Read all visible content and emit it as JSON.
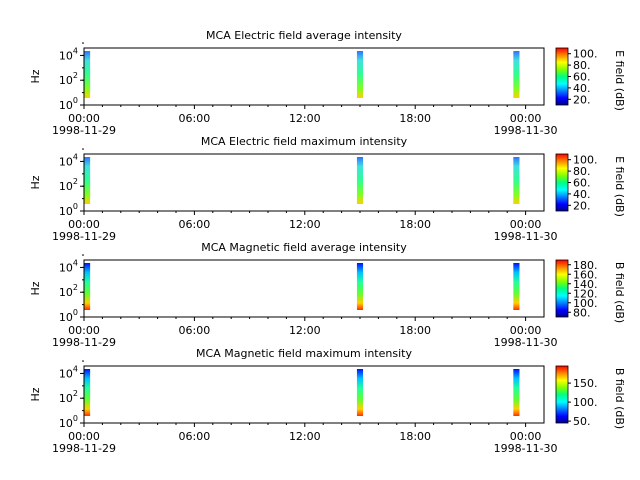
{
  "chart_data": [
    {
      "type": "heatmap",
      "title": "MCA  Electric field average intensity",
      "ylabel": "Hz",
      "y_ticks": [
        {
          "base": "10",
          "exp": "0"
        },
        {
          "base": "10",
          "exp": "2"
        },
        {
          "base": "10",
          "exp": "4"
        }
      ],
      "x_ticks": [
        "00:00",
        "06:00",
        "12:00",
        "18:00",
        "00:00"
      ],
      "x_dates": [
        "1998-11-29",
        "1998-11-30"
      ],
      "colorbar": {
        "label": "E field (dB)",
        "ticks": [
          "20.",
          "40.",
          "60.",
          "80.",
          "100."
        ],
        "range": [
          10,
          110
        ]
      },
      "bursts": [
        {
          "start": "00:00",
          "end": "00:20"
        },
        {
          "start": "14:50",
          "end": "15:10"
        },
        {
          "start": "23:20",
          "end": "23:40"
        }
      ]
    },
    {
      "type": "heatmap",
      "title": "MCA  Electric field maximum intensity",
      "ylabel": "Hz",
      "y_ticks": [
        {
          "base": "10",
          "exp": "0"
        },
        {
          "base": "10",
          "exp": "2"
        },
        {
          "base": "10",
          "exp": "4"
        }
      ],
      "x_ticks": [
        "00:00",
        "06:00",
        "12:00",
        "18:00",
        "00:00"
      ],
      "x_dates": [
        "1998-11-29",
        "1998-11-30"
      ],
      "colorbar": {
        "label": "E field (dB)",
        "ticks": [
          "20.",
          "40.",
          "60.",
          "80.",
          "100."
        ],
        "range": [
          10,
          110
        ]
      },
      "bursts": [
        {
          "start": "00:00",
          "end": "00:20"
        },
        {
          "start": "14:50",
          "end": "15:10"
        },
        {
          "start": "23:20",
          "end": "23:40"
        }
      ]
    },
    {
      "type": "heatmap",
      "title": "MCA  Magnetic field average intensity",
      "ylabel": "Hz",
      "y_ticks": [
        {
          "base": "10",
          "exp": "0"
        },
        {
          "base": "10",
          "exp": "2"
        },
        {
          "base": "10",
          "exp": "4"
        }
      ],
      "x_ticks": [
        "00:00",
        "06:00",
        "12:00",
        "18:00",
        "00:00"
      ],
      "x_dates": [
        "1998-11-29",
        "1998-11-30"
      ],
      "colorbar": {
        "label": "B field (dB)",
        "ticks": [
          "80.",
          "100.",
          "120.",
          "140.",
          "160.",
          "180."
        ],
        "range": [
          70,
          190
        ]
      },
      "bursts": [
        {
          "start": "00:00",
          "end": "00:20"
        },
        {
          "start": "14:50",
          "end": "15:10"
        },
        {
          "start": "23:20",
          "end": "23:40"
        }
      ]
    },
    {
      "type": "heatmap",
      "title": "MCA  Magnetic field maximum intensity",
      "ylabel": "Hz",
      "y_ticks": [
        {
          "base": "10",
          "exp": "0"
        },
        {
          "base": "10",
          "exp": "2"
        },
        {
          "base": "10",
          "exp": "4"
        }
      ],
      "x_ticks": [
        "00:00",
        "06:00",
        "12:00",
        "18:00",
        "00:00"
      ],
      "x_dates": [
        "1998-11-29",
        "1998-11-30"
      ],
      "colorbar": {
        "label": "B field (dB)",
        "ticks": [
          "50.",
          "100.",
          "150."
        ],
        "range": [
          45,
          195
        ]
      },
      "bursts": [
        {
          "start": "00:00",
          "end": "00:20"
        },
        {
          "start": "14:50",
          "end": "15:10"
        },
        {
          "start": "23:20",
          "end": "23:40"
        }
      ]
    }
  ]
}
